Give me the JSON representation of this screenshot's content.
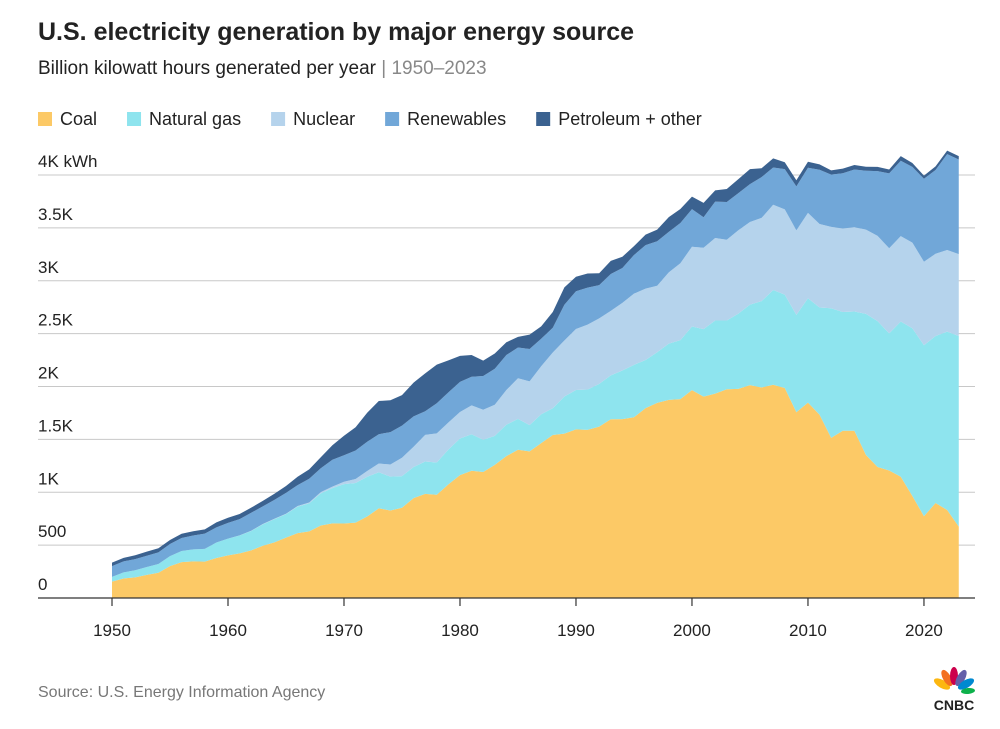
{
  "chart_data": {
    "type": "stacked_area",
    "title": "U.S. electricity generation by major energy source",
    "subtitle": "Billion kilowatt hours generated per year",
    "subtitle_range": "1950–2023",
    "source": "Source: U.S. Energy Information Agency",
    "logo": "CNBC",
    "x": [
      1950,
      1951,
      1952,
      1953,
      1954,
      1955,
      1956,
      1957,
      1958,
      1959,
      1960,
      1961,
      1962,
      1963,
      1964,
      1965,
      1966,
      1967,
      1968,
      1969,
      1970,
      1971,
      1972,
      1973,
      1974,
      1975,
      1976,
      1977,
      1978,
      1979,
      1980,
      1981,
      1982,
      1983,
      1984,
      1985,
      1986,
      1987,
      1988,
      1989,
      1990,
      1991,
      1992,
      1993,
      1994,
      1995,
      1996,
      1997,
      1998,
      1999,
      2000,
      2001,
      2002,
      2003,
      2004,
      2005,
      2006,
      2007,
      2008,
      2009,
      2010,
      2011,
      2012,
      2013,
      2014,
      2015,
      2016,
      2017,
      2018,
      2019,
      2020,
      2021,
      2022,
      2023
    ],
    "series": [
      {
        "name": "Coal",
        "color": "#fcc966",
        "values": [
          155,
          185,
          195,
          219,
          239,
          301,
          339,
          346,
          344,
          378,
          403,
          422,
          450,
          494,
          526,
          571,
          613,
          630,
          685,
          706,
          704,
          713,
          771,
          848,
          828,
          853,
          944,
          985,
          976,
          1075,
          1162,
          1203,
          1192,
          1259,
          1342,
          1402,
          1386,
          1464,
          1541,
          1554,
          1594,
          1590,
          1621,
          1690,
          1691,
          1709,
          1796,
          1845,
          1874,
          1881,
          1966,
          1904,
          1933,
          1974,
          1978,
          2013,
          1991,
          2016,
          1986,
          1756,
          1847,
          1733,
          1514,
          1581,
          1582,
          1352,
          1239,
          1206,
          1146,
          965,
          773,
          898,
          832,
          675
        ]
      },
      {
        "name": "Natural gas",
        "color": "#8ee4ee",
        "values": [
          45,
          57,
          67,
          74,
          83,
          95,
          105,
          114,
          120,
          147,
          158,
          169,
          184,
          202,
          220,
          222,
          251,
          265,
          304,
          333,
          373,
          374,
          376,
          341,
          320,
          300,
          295,
          306,
          305,
          329,
          346,
          346,
          305,
          274,
          297,
          292,
          249,
          273,
          253,
          352,
          373,
          382,
          404,
          415,
          460,
          496,
          455,
          479,
          532,
          557,
          601,
          639,
          691,
          650,
          711,
          761,
          816,
          897,
          883,
          921,
          988,
          1014,
          1226,
          1124,
          1127,
          1335,
          1379,
          1296,
          1469,
          1586,
          1617,
          1579,
          1687,
          1802
        ]
      },
      {
        "name": "Nuclear",
        "color": "#b5d3ec",
        "values": [
          0,
          0,
          0,
          0,
          0,
          0,
          0,
          0,
          0.2,
          0.2,
          0.5,
          1.7,
          2.3,
          3.2,
          3.3,
          3.7,
          5.5,
          7.7,
          12.5,
          13.9,
          22,
          38,
          54,
          83,
          114,
          173,
          191,
          251,
          276,
          255,
          251,
          273,
          283,
          294,
          328,
          384,
          414,
          455,
          527,
          529,
          577,
          613,
          619,
          610,
          640,
          673,
          675,
          629,
          673,
          728,
          754,
          769,
          780,
          764,
          789,
          782,
          787,
          806,
          806,
          799,
          807,
          790,
          769,
          789,
          797,
          797,
          806,
          805,
          807,
          809,
          790,
          778,
          772,
          775
        ]
      },
      {
        "name": "Renewables",
        "color": "#71a7d8",
        "values": [
          101,
          104,
          106,
          107,
          109,
          115,
          123,
          131,
          145,
          143,
          149,
          153,
          170,
          167,
          179,
          197,
          198,
          225,
          226,
          254,
          251,
          270,
          277,
          277,
          307,
          304,
          287,
          224,
          285,
          285,
          285,
          270,
          319,
          341,
          331,
          291,
          305,
          259,
          234,
          338,
          357,
          350,
          315,
          349,
          330,
          365,
          411,
          420,
          383,
          380,
          356,
          288,
          344,
          357,
          351,
          358,
          386,
          352,
          380,
          417,
          427,
          513,
          494,
          522,
          546,
          556,
          613,
          708,
          713,
          717,
          784,
          792,
          906,
          894
        ]
      },
      {
        "name": "Petroleum + other",
        "color": "#3b6290",
        "values": [
          34,
          33,
          36,
          39,
          40,
          37,
          40,
          40,
          40,
          47,
          48,
          49,
          48,
          52,
          57,
          65,
          79,
          89,
          104,
          138,
          184,
          220,
          274,
          314,
          301,
          289,
          320,
          358,
          365,
          303,
          246,
          206,
          146,
          144,
          120,
          100,
          137,
          118,
          149,
          164,
          137,
          133,
          112,
          124,
          106,
          84,
          99,
          110,
          140,
          133,
          119,
          136,
          107,
          123,
          132,
          141,
          84,
          86,
          66,
          57,
          56,
          50,
          41,
          44,
          42,
          38,
          40,
          37,
          43,
          36,
          30,
          34,
          33,
          32
        ]
      }
    ],
    "xlim": [
      1943.62,
      2024.4
    ],
    "xticks": [
      1950,
      1960,
      1970,
      1980,
      1990,
      2000,
      2010,
      2020
    ],
    "ylim": [
      0,
      4250
    ],
    "yticks": [
      0,
      500,
      {
        "value": 1000,
        "label": "1K"
      },
      {
        "value": 1500,
        "label": "1.5K"
      },
      {
        "value": 2000,
        "label": "2K"
      },
      {
        "value": 2500,
        "label": "2.5K"
      },
      {
        "value": 3000,
        "label": "3K"
      },
      {
        "value": 3500,
        "label": "3.5K"
      },
      {
        "value": 4000,
        "label": "4K kWh"
      }
    ],
    "grid": true,
    "legend": "top"
  }
}
